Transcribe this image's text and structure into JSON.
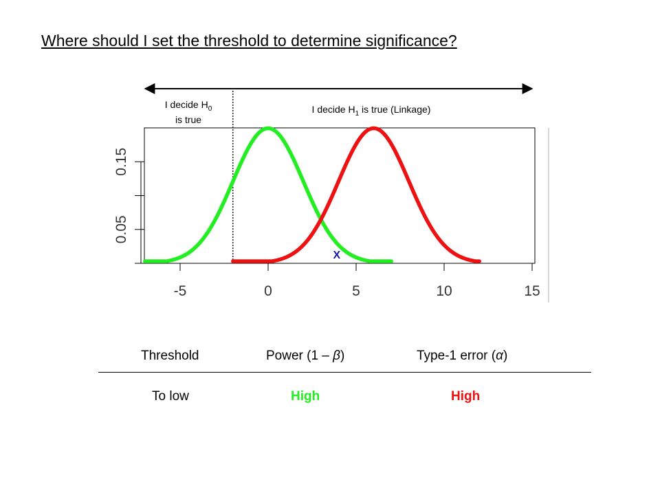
{
  "slide": {
    "title": "Where should I set the threshold to determine significance?"
  },
  "chart_data": {
    "type": "line",
    "xlim": [
      -7.5,
      15
    ],
    "ylim": [
      0,
      0.2
    ],
    "x_ticks": [
      -5,
      0,
      5,
      10,
      15
    ],
    "x_tick_labels": [
      "-5",
      "0",
      "5",
      "10",
      "15"
    ],
    "y_ticks": [
      0,
      0.05,
      0.1,
      0.15
    ],
    "y_tick_labels": [
      "0.05",
      "0.15"
    ],
    "series": [
      {
        "color": "#22ee22",
        "distribution": "normal",
        "mean": 0,
        "sd": 2,
        "x_range": [
          -7,
          7
        ]
      },
      {
        "color": "#ee1111",
        "distribution": "normal",
        "mean": 6,
        "sd": 2,
        "x_range": [
          -2,
          12
        ]
      }
    ],
    "threshold_x": -2,
    "marker": {
      "text": "X",
      "x": 3.9,
      "color": "#1a1aaa"
    },
    "region_left": {
      "line1": "I decide H",
      "sub": "0",
      "line2": "is true"
    },
    "region_right": {
      "pre": "I decide H",
      "sub": "1",
      "post": " is true (Linkage)"
    }
  },
  "table": {
    "headers": [
      "Threshold",
      "Power (1 – ",
      "β",
      ")",
      "Type-1 error (",
      "α",
      ")"
    ],
    "rows": [
      {
        "threshold": "To low",
        "power": "High",
        "type1": "High",
        "power_color": "#22ee22",
        "type1_color": "#ee1111"
      }
    ]
  }
}
